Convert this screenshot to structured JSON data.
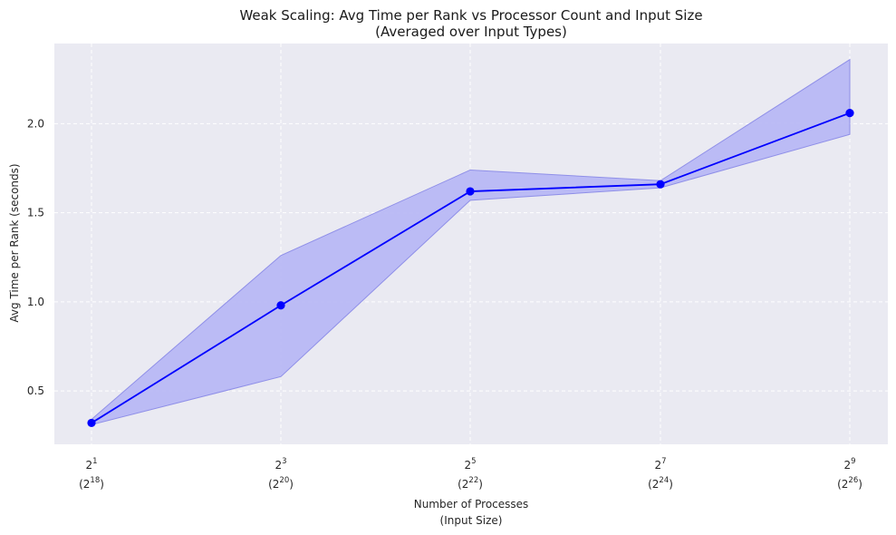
{
  "chart_data": {
    "type": "line",
    "title": "Weak Scaling: Avg Time per Rank vs Processor Count and Input Size",
    "subtitle": "(Averaged over Input Types)",
    "xlabel": "Number of Processes",
    "xlabel_sub": "(Input Size)",
    "ylabel": "Avg Time per Rank (seconds)",
    "x": [
      2,
      8,
      32,
      128,
      512
    ],
    "x_ticks": [
      {
        "base": "2",
        "exp": "1",
        "size_base": "(2",
        "size_exp": "18",
        "size_close": ")"
      },
      {
        "base": "2",
        "exp": "3",
        "size_base": "(2",
        "size_exp": "20",
        "size_close": ")"
      },
      {
        "base": "2",
        "exp": "5",
        "size_base": "(2",
        "size_exp": "22",
        "size_close": ")"
      },
      {
        "base": "2",
        "exp": "7",
        "size_base": "(2",
        "size_exp": "24",
        "size_close": ")"
      },
      {
        "base": "2",
        "exp": "9",
        "size_base": "(2",
        "size_exp": "26",
        "size_close": ")"
      }
    ],
    "x_scale": "log2",
    "series": [
      {
        "values": [
          0.32,
          0.98,
          1.62,
          1.66,
          2.06
        ],
        "lower": [
          0.31,
          0.58,
          1.57,
          1.64,
          1.94
        ],
        "upper": [
          0.34,
          1.26,
          1.74,
          1.68,
          2.36
        ],
        "color": "#0000ff",
        "band_color": "#b8b8f4"
      }
    ],
    "ylim": [
      0.2,
      2.45
    ],
    "yticks": [
      "0.5",
      "1.0",
      "1.5",
      "2.0"
    ],
    "grid": true,
    "background": "#eaeaf2"
  }
}
